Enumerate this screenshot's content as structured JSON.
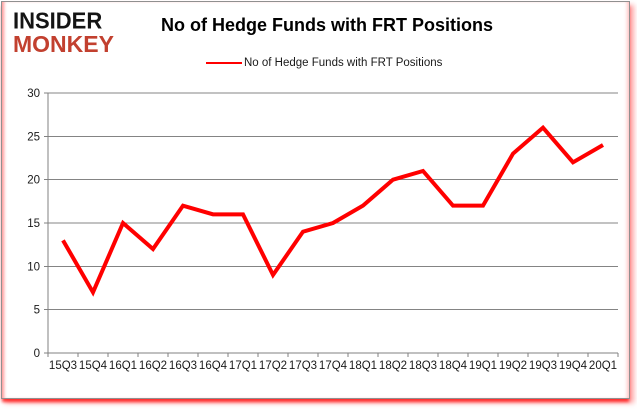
{
  "brand": {
    "logo_line1": "INSIDER",
    "logo_line2": "MONKEY",
    "logo_color_primary": "#141414",
    "logo_color_secondary": "#c2402f"
  },
  "header": {
    "title": "No of Hedge Funds with FRT Positions"
  },
  "legend": {
    "label": "No of Hedge Funds with FRT Positions",
    "line_color": "#ff0000"
  },
  "chart_data": {
    "type": "line",
    "title": "No of Hedge Funds with FRT Positions",
    "categories": [
      "15Q3",
      "15Q4",
      "16Q1",
      "16Q2",
      "16Q3",
      "16Q4",
      "17Q1",
      "17Q2",
      "17Q3",
      "17Q4",
      "18Q1",
      "18Q2",
      "18Q3",
      "18Q4",
      "19Q1",
      "19Q2",
      "19Q3",
      "19Q4",
      "20Q1"
    ],
    "series": [
      {
        "name": "No of Hedge Funds with FRT Positions",
        "color": "#ff0000",
        "values": [
          13,
          7,
          15,
          12,
          17,
          16,
          16,
          9,
          14,
          15,
          17,
          20,
          21,
          17,
          17,
          23,
          26,
          22,
          24
        ]
      }
    ],
    "xlabel": "",
    "ylabel": "",
    "ylim": [
      0,
      30
    ],
    "yticks": [
      0,
      5,
      10,
      15,
      20,
      25,
      30
    ],
    "grid": true,
    "legend_position": "top-center"
  },
  "colors": {
    "grid": "#848484",
    "axis": "#808080",
    "tick_text": "#1a1a1a",
    "background": "#ffffff"
  }
}
